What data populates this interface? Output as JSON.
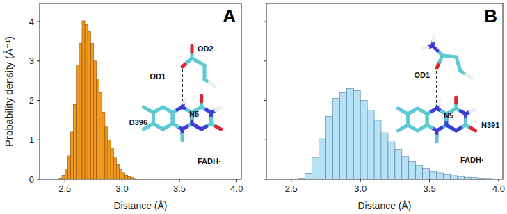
{
  "chart_data": [
    {
      "type": "histogram",
      "title": "A",
      "x_label": "Distance (Å)",
      "y_label": "Probability density (Å⁻¹)",
      "bins": [
        2.45,
        2.475,
        2.5,
        2.525,
        2.55,
        2.575,
        2.6,
        2.625,
        2.65,
        2.675,
        2.7,
        2.725,
        2.75,
        2.775,
        2.8,
        2.825,
        2.85,
        2.875,
        2.9,
        2.925,
        2.95,
        2.975,
        3.0,
        3.025,
        3.05,
        3.075,
        3.1,
        3.125,
        3.15,
        3.175,
        3.2
      ],
      "values": [
        0.03,
        0.1,
        0.25,
        0.6,
        1.2,
        1.9,
        2.9,
        3.45,
        4.02,
        3.93,
        3.75,
        3.45,
        3.0,
        2.55,
        2.2,
        1.7,
        1.35,
        1.0,
        0.78,
        0.55,
        0.38,
        0.25,
        0.16,
        0.1,
        0.07,
        0.04,
        0.02,
        0.01,
        0.005,
        0.003
      ],
      "color": "#f39a1e",
      "xlim": [
        2.28,
        4.04
      ],
      "xticks": [
        2.5,
        {
          "value": 3,
          "label": "3.0"
        },
        3.5,
        {
          "value": 4,
          "label": "4.0"
        }
      ],
      "ylim": [
        0,
        4.46
      ],
      "yticks": [
        0,
        1,
        2,
        3,
        4
      ],
      "annotations": [
        "OD1",
        "OD2",
        "N5",
        "D396",
        "FADH·"
      ]
    },
    {
      "type": "histogram",
      "title": "B",
      "x_label": "Distance (Å)",
      "bins": [
        2.55,
        2.6,
        2.65,
        2.7,
        2.75,
        2.8,
        2.85,
        2.9,
        2.95,
        3.0,
        3.05,
        3.1,
        3.15,
        3.2,
        3.25,
        3.3,
        3.35,
        3.4,
        3.45,
        3.5,
        3.55,
        3.6,
        3.65,
        3.7,
        3.75,
        3.8,
        3.85,
        3.9,
        3.95,
        4.0
      ],
      "values": [
        0.03,
        0.15,
        0.55,
        1.05,
        1.6,
        2.05,
        2.2,
        2.3,
        2.25,
        2.0,
        1.75,
        1.5,
        1.18,
        0.95,
        0.75,
        0.58,
        0.45,
        0.35,
        0.27,
        0.2,
        0.16,
        0.12,
        0.09,
        0.07,
        0.05,
        0.04,
        0.03,
        0.02,
        0.01
      ],
      "color": "#b7e1f6",
      "xlim": [
        2.32,
        4.03
      ],
      "xticks": [
        2.5,
        {
          "value": 3,
          "label": "3.0"
        },
        3.5,
        {
          "value": 4,
          "label": "4.0"
        }
      ],
      "ylim": [
        0,
        4.46
      ],
      "yticks": [
        0,
        1,
        2,
        3,
        4
      ],
      "tick_labels": "x",
      "annotations": [
        "OD1",
        "N5",
        "N391",
        "FADH·"
      ]
    }
  ]
}
